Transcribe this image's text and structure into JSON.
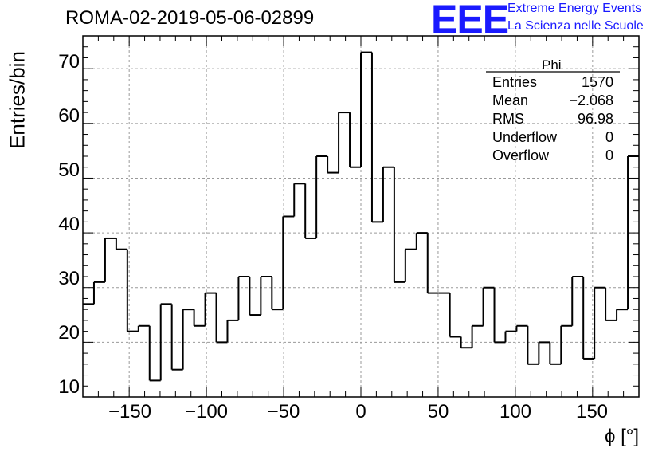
{
  "header": {
    "title": "ROMA-02-2019-05-06-02899",
    "logo_text": "EEE",
    "logo_line1": "Extreme Energy Events",
    "logo_line2": "La Scienza nelle Scuole",
    "logo_color": "#1a1aff"
  },
  "stats": {
    "title": "Phi",
    "rows": [
      {
        "key": "Entries",
        "value": "1570"
      },
      {
        "key": "Mean",
        "value": "−2.068"
      },
      {
        "key": "RMS",
        "value": "96.98"
      },
      {
        "key": "Underflow",
        "value": "0"
      },
      {
        "key": "Overflow",
        "value": "0"
      }
    ]
  },
  "chart_data": {
    "type": "histogram",
    "title": "ROMA-02-2019-05-06-02899",
    "xlabel": "ϕ [°]",
    "ylabel": "Entries/bin",
    "xlim": [
      -180,
      180
    ],
    "ylim": [
      10,
      76
    ],
    "bin_width": 7.2,
    "grid": true,
    "x_ticks": [
      "−150",
      "−100",
      "−50",
      "0",
      "50",
      "100",
      "150"
    ],
    "x_tick_values": [
      -150,
      -100,
      -50,
      0,
      50,
      100,
      150
    ],
    "y_ticks": [
      "10",
      "20",
      "30",
      "40",
      "50",
      "60",
      "70"
    ],
    "y_tick_values": [
      10,
      20,
      30,
      40,
      50,
      60,
      70
    ],
    "values": [
      27,
      31,
      39,
      37,
      22,
      23,
      13,
      27,
      15,
      26,
      23,
      29,
      20,
      24,
      32,
      25,
      32,
      26,
      43,
      49,
      39,
      54,
      51,
      62,
      52,
      73,
      42,
      52,
      31,
      37,
      40,
      29,
      29,
      21,
      19,
      23,
      30,
      20,
      22,
      23,
      16,
      20,
      16,
      23,
      32,
      17,
      30,
      24,
      26,
      54
    ]
  }
}
